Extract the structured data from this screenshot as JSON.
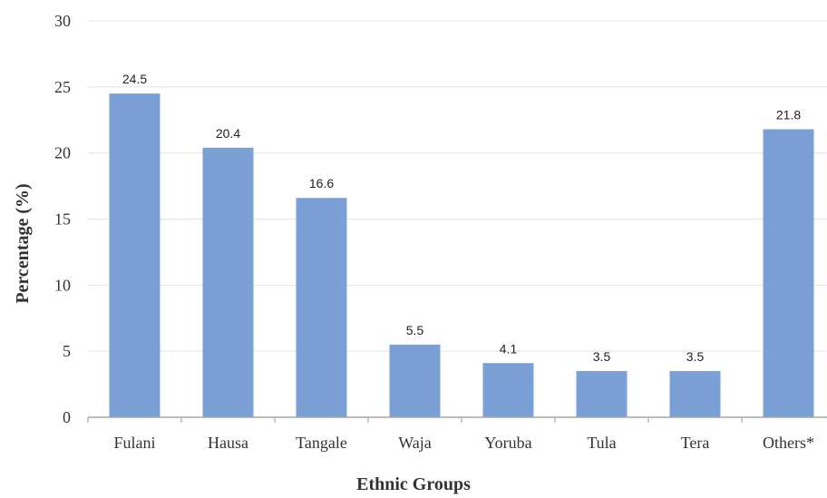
{
  "chart_data": {
    "type": "bar",
    "categories": [
      "Fulani",
      "Hausa",
      "Tangale",
      "Waja",
      "Yoruba",
      "Tula",
      "Tera",
      "Others*"
    ],
    "values": [
      24.5,
      20.4,
      16.6,
      5.5,
      4.1,
      3.5,
      3.5,
      21.8
    ],
    "data_labels": [
      "24.5",
      "20.4",
      "16.6",
      "5.5",
      "4.1",
      "3.5",
      "3.5",
      "21.8"
    ],
    "title": "",
    "xlabel": "Ethnic Groups",
    "ylabel": "Percentage (%)",
    "ylim": [
      0,
      30
    ],
    "yticks": [
      0,
      5,
      10,
      15,
      20,
      25,
      30
    ],
    "ytick_labels": [
      "0",
      "5",
      "10",
      "15",
      "20",
      "25",
      "30"
    ],
    "grid": true,
    "legend": "none",
    "colors": {
      "bar": "#7aa0d6",
      "grid": "#e3e3e3",
      "axis": "#a6a6a6"
    }
  }
}
